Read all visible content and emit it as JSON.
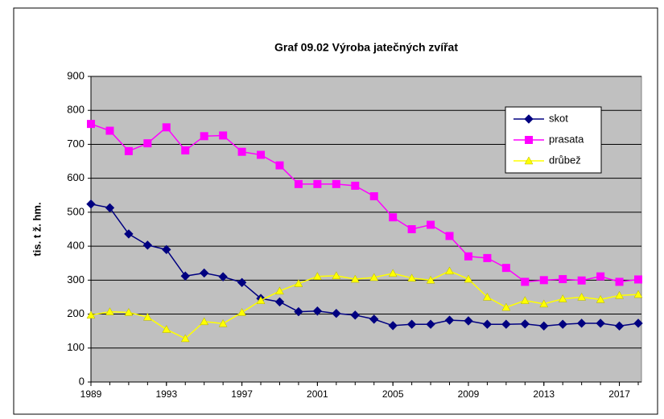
{
  "chart_data": {
    "type": "line",
    "title": "Graf 09.02 Výroba jatečných zvířat",
    "y_label": "tis. t ž. hm.",
    "x": [
      1989,
      1990,
      1991,
      1992,
      1993,
      1994,
      1995,
      1996,
      1997,
      1998,
      1999,
      2000,
      2001,
      2002,
      2003,
      2004,
      2005,
      2006,
      2007,
      2008,
      2009,
      2010,
      2011,
      2012,
      2013,
      2014,
      2015,
      2016,
      2017,
      2018
    ],
    "series": [
      {
        "name": "skot",
        "color": "#000080",
        "marker": "diamond",
        "values": [
          524,
          513,
          436,
          403,
          390,
          312,
          321,
          310,
          293,
          246,
          236,
          207,
          209,
          202,
          197,
          185,
          166,
          170,
          170,
          182,
          180,
          170,
          170,
          171,
          165,
          170,
          173,
          173,
          165,
          173
        ]
      },
      {
        "name": "prasata",
        "color": "#ff00ff",
        "marker": "square",
        "values": [
          760,
          740,
          680,
          703,
          750,
          682,
          724,
          726,
          678,
          669,
          638,
          583,
          583,
          583,
          578,
          547,
          485,
          450,
          463,
          430,
          370,
          365,
          336,
          295,
          300,
          303,
          299,
          311,
          295,
          302
        ]
      },
      {
        "name": "drůbež",
        "color": "#ffff00",
        "marker": "triangle",
        "values": [
          197,
          207,
          205,
          191,
          155,
          128,
          178,
          172,
          205,
          240,
          268,
          290,
          311,
          313,
          303,
          308,
          320,
          306,
          300,
          327,
          303,
          250,
          220,
          240,
          230,
          245,
          250,
          243,
          255,
          258
        ]
      }
    ],
    "xlim": [
      1989,
      2018
    ],
    "xticks": [
      1989,
      1993,
      1997,
      2001,
      2005,
      2009,
      2013,
      2017
    ],
    "ylim": [
      0,
      900
    ],
    "yticks": [
      0,
      100,
      200,
      300,
      400,
      500,
      600,
      700,
      800,
      900
    ],
    "grid": true,
    "legend": "upper right",
    "background": "#c0c0c0"
  }
}
